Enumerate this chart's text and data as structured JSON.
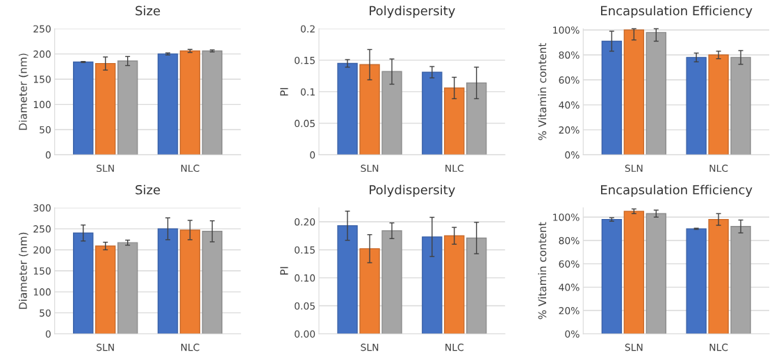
{
  "chart_data": [
    {
      "type": "bar",
      "title": "Size",
      "ylabel": "Diameter (nm)",
      "categories": [
        "SLN",
        "NLC"
      ],
      "ylim": [
        0,
        250
      ],
      "yticks": [
        0,
        50,
        100,
        150,
        200,
        250
      ],
      "grid": "y",
      "series": [
        {
          "color": "#4472c4",
          "values": [
            184,
            200
          ],
          "errors": [
            1,
            2
          ]
        },
        {
          "color": "#ed7d31",
          "values": [
            181,
            206
          ],
          "errors": [
            13,
            3
          ]
        },
        {
          "color": "#a5a5a5",
          "values": [
            186,
            206
          ],
          "errors": [
            9,
            2
          ]
        }
      ]
    },
    {
      "type": "bar",
      "title": "Polydispersity",
      "ylabel": "PI",
      "categories": [
        "SLN",
        "NLC"
      ],
      "ylim": [
        0,
        0.2
      ],
      "yticks": [
        0,
        0.05,
        0.1,
        0.15,
        0.2
      ],
      "grid": "y",
      "series": [
        {
          "color": "#4472c4",
          "values": [
            0.145,
            0.131
          ],
          "errors": [
            0.006,
            0.009
          ]
        },
        {
          "color": "#ed7d31",
          "values": [
            0.143,
            0.106
          ],
          "errors": [
            0.024,
            0.017
          ]
        },
        {
          "color": "#a5a5a5",
          "values": [
            0.132,
            0.114
          ],
          "errors": [
            0.02,
            0.025
          ]
        }
      ]
    },
    {
      "type": "bar",
      "title": "Encapsulation Efficiency",
      "ylabel": "% Vitamin content",
      "categories": [
        "SLN",
        "NLC"
      ],
      "ylim": [
        0,
        101
      ],
      "yticks": [
        {
          "value": 0,
          "label": "0%"
        },
        {
          "value": 20,
          "label": "20%"
        },
        {
          "value": 40,
          "label": "40%"
        },
        {
          "value": 60,
          "label": "60%"
        },
        {
          "value": 80,
          "label": "80%"
        },
        {
          "value": 100,
          "label": "100%"
        }
      ],
      "grid": "y",
      "series": [
        {
          "color": "#4472c4",
          "values": [
            91,
            78
          ],
          "errors": [
            8,
            3.5
          ]
        },
        {
          "color": "#ed7d31",
          "values": [
            100,
            80
          ],
          "errors": [
            [
              92,
              101
            ],
            3
          ]
        },
        {
          "color": "#a5a5a5",
          "values": [
            98,
            78
          ],
          "errors": [
            [
              91,
              101
            ],
            5.5
          ]
        }
      ]
    },
    {
      "type": "bar",
      "title": "Size",
      "ylabel": "Diameter (nm)",
      "categories": [
        "SLN",
        "NLC"
      ],
      "ylim": [
        0,
        300
      ],
      "yticks": [
        0,
        50,
        100,
        150,
        200,
        250,
        300
      ],
      "grid": "y",
      "series": [
        {
          "color": "#4472c4",
          "values": [
            240,
            250
          ],
          "errors": [
            19,
            26
          ]
        },
        {
          "color": "#ed7d31",
          "values": [
            209,
            247
          ],
          "errors": [
            9,
            23
          ]
        },
        {
          "color": "#a5a5a5",
          "values": [
            217,
            244
          ],
          "errors": [
            6,
            25
          ]
        }
      ]
    },
    {
      "type": "bar",
      "title": "Polydispersity",
      "ylabel": "PI",
      "categories": [
        "SLN",
        "NLC"
      ],
      "ylim": [
        0,
        0.225
      ],
      "yticks": [
        {
          "value": 0,
          "label": "0.00"
        },
        {
          "value": 0.05,
          "label": "0.05"
        },
        {
          "value": 0.1,
          "label": "0.10"
        },
        {
          "value": 0.15,
          "label": "0.15"
        },
        {
          "value": 0.2,
          "label": "0.20"
        }
      ],
      "grid": "y",
      "series": [
        {
          "color": "#4472c4",
          "values": [
            0.193,
            0.173
          ],
          "errors": [
            0.026,
            0.035
          ]
        },
        {
          "color": "#ed7d31",
          "values": [
            0.152,
            0.175
          ],
          "errors": [
            0.025,
            0.015
          ]
        },
        {
          "color": "#a5a5a5",
          "values": [
            0.184,
            0.171
          ],
          "errors": [
            0.014,
            0.028
          ]
        }
      ]
    },
    {
      "type": "bar",
      "title": "Encapsulation Efficiency",
      "ylabel": "% Vitamin content",
      "categories": [
        "SLN",
        "NLC"
      ],
      "ylim": [
        0,
        108
      ],
      "yticks": [
        {
          "value": 0,
          "label": "0%"
        },
        {
          "value": 20,
          "label": "20%"
        },
        {
          "value": 40,
          "label": "40%"
        },
        {
          "value": 60,
          "label": "60%"
        },
        {
          "value": 80,
          "label": "80%"
        },
        {
          "value": 100,
          "label": "100%"
        }
      ],
      "grid": "y",
      "series": [
        {
          "color": "#4472c4",
          "values": [
            98,
            90
          ],
          "errors": [
            1.5,
            0.5
          ]
        },
        {
          "color": "#ed7d31",
          "values": [
            105,
            98
          ],
          "errors": [
            2,
            5
          ]
        },
        {
          "color": "#a5a5a5",
          "values": [
            103,
            92
          ],
          "errors": [
            3,
            5.5
          ]
        }
      ]
    }
  ]
}
